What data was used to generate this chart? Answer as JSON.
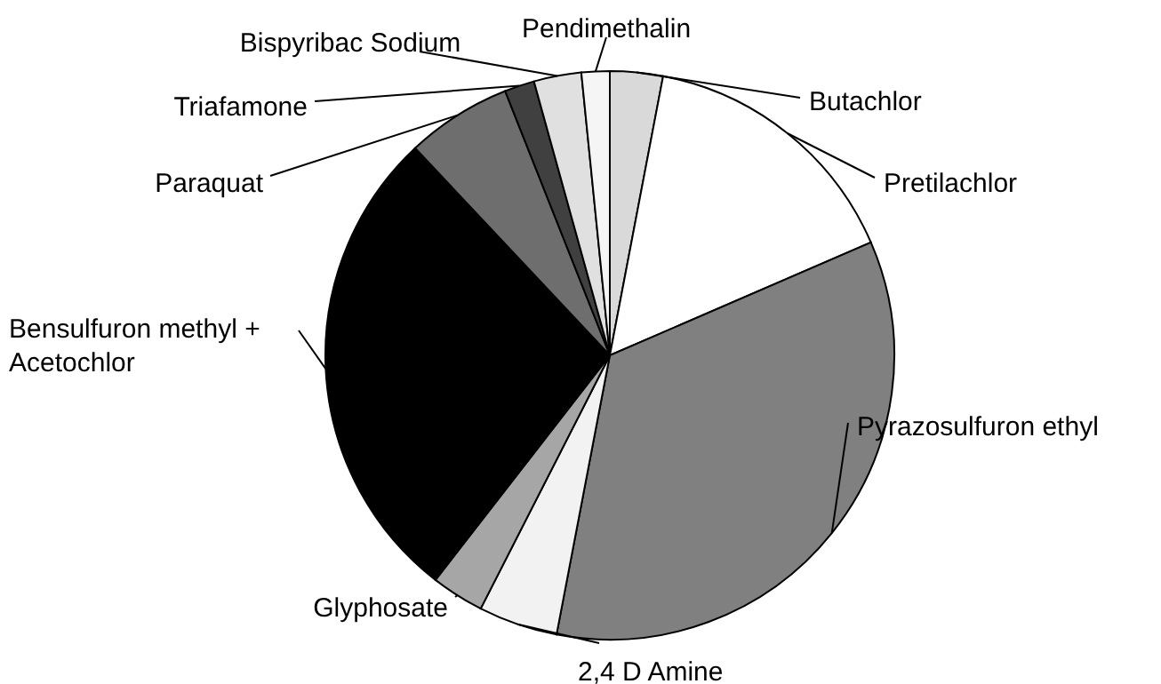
{
  "chart_data": {
    "type": "pie",
    "categories": [
      "Butachlor",
      "Pretilachlor",
      "Pyrazosulfuron ethyl",
      "2,4 D Amine",
      "Glyphosate",
      "Bensulfuron methyl + Acetochlor",
      "Paraquat",
      "Triafamone",
      "Bispyribac Sodium",
      "Pendimethalin"
    ],
    "values": [
      3,
      15.5,
      34.5,
      4.5,
      3,
      27.5,
      6,
      1.7,
      2.7,
      1.6
    ],
    "colors": [
      "#d9d9d9",
      "#ffffff",
      "#808080",
      "#f2f2f2",
      "#a6a6a6",
      "#000000",
      "#6e6e6e",
      "#404040",
      "#e0e0e0",
      "#f5f5f5"
    ]
  }
}
